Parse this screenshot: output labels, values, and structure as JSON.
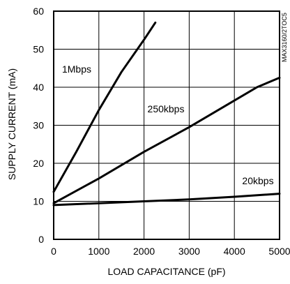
{
  "chart_data": {
    "type": "line",
    "xlabel": "LOAD CAPACITANCE (pF)",
    "ylabel": "SUPPLY CURRENT (mA)",
    "xlim": [
      0,
      5000
    ],
    "ylim": [
      0,
      60
    ],
    "x_ticks": [
      "0",
      "1000",
      "2000",
      "3000",
      "4000",
      "5000"
    ],
    "y_ticks": [
      "0",
      "10",
      "20",
      "30",
      "40",
      "50",
      "60"
    ],
    "grid": true,
    "figure_code": "MAX3160/2TOC5",
    "series": [
      {
        "name": "1Mbps",
        "x": [
          0,
          500,
          1000,
          1500,
          2000,
          2250
        ],
        "y": [
          12.5,
          23,
          34,
          44,
          52.5,
          57
        ]
      },
      {
        "name": "250kbps",
        "x": [
          0,
          1000,
          2000,
          3000,
          4000,
          4500,
          5000
        ],
        "y": [
          9.5,
          16,
          23,
          29.5,
          36.5,
          40,
          42.5
        ]
      },
      {
        "name": "20kbps",
        "x": [
          0,
          1000,
          2000,
          3000,
          4000,
          5000
        ],
        "y": [
          9,
          9.5,
          10,
          10.5,
          11.2,
          12
        ]
      }
    ]
  }
}
